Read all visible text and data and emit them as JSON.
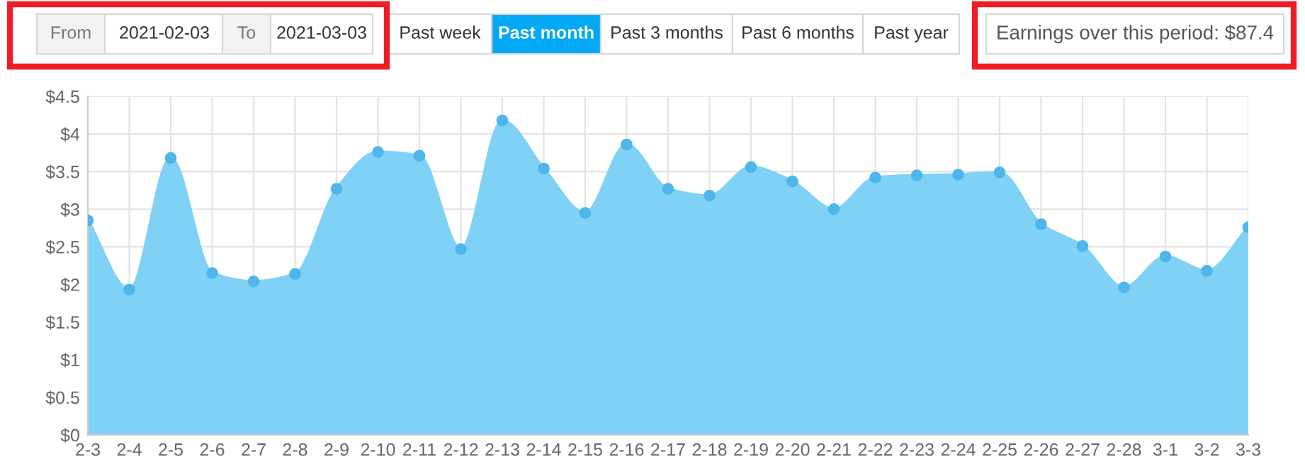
{
  "chart_data": {
    "type": "area",
    "categories": [
      "2-3",
      "2-4",
      "2-5",
      "2-6",
      "2-7",
      "2-8",
      "2-9",
      "2-10",
      "2-11",
      "2-12",
      "2-13",
      "2-14",
      "2-15",
      "2-16",
      "2-17",
      "2-18",
      "2-19",
      "2-20",
      "2-21",
      "2-22",
      "2-23",
      "2-24",
      "2-25",
      "2-26",
      "2-27",
      "2-28",
      "3-1",
      "3-2",
      "3-3"
    ],
    "series": [
      {
        "color": "#7fd1f6",
        "values": [
          2.85,
          1.93,
          3.68,
          2.15,
          2.04,
          2.14,
          3.27,
          3.76,
          3.71,
          2.47,
          4.18,
          3.54,
          2.95,
          3.86,
          3.27,
          3.18,
          3.56,
          3.37,
          3.0,
          3.42,
          3.45,
          3.46,
          3.49,
          2.8,
          2.51,
          1.96,
          2.37,
          2.18,
          2.76
        ]
      }
    ],
    "ylim": [
      0,
      4.5
    ],
    "yticks": [
      {
        "value": 0,
        "label": "$0"
      },
      {
        "value": 0.5,
        "label": "$0.5"
      },
      {
        "value": 1,
        "label": "$1"
      },
      {
        "value": 1.5,
        "label": "$1.5"
      },
      {
        "value": 2,
        "label": "$2"
      },
      {
        "value": 2.5,
        "label": "$2.5"
      },
      {
        "value": 3,
        "label": "$3"
      },
      {
        "value": 3.5,
        "label": "$3.5"
      },
      {
        "value": 4,
        "label": "$4"
      },
      {
        "value": 4.5,
        "label": "$4.5"
      }
    ],
    "grid": true,
    "marker": "circle",
    "line_style": "solid",
    "annotations": [
      "From",
      "2021-02-03",
      "To",
      "2021-03-03",
      "Past week",
      "Past month",
      "Past 3 months",
      "Past 6 months",
      "Past year",
      "Earnings over this period: $87.4"
    ]
  }
}
